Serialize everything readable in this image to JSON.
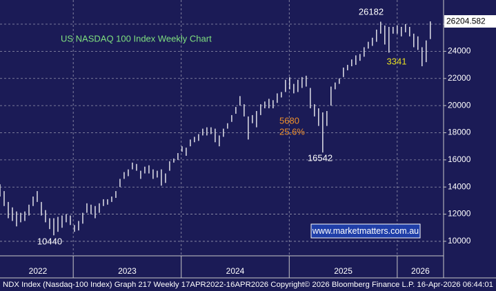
{
  "chart_data": {
    "type": "range_bar",
    "title": "US NASDAQ 100 Index Weekly Chart",
    "high": [
      14200,
      13700,
      12900,
      12500,
      12200,
      12100,
      12200,
      12700,
      13300,
      13700,
      12900,
      12300,
      11700,
      11700,
      11800,
      11900,
      12000,
      11900,
      11200,
      11500,
      12100,
      12800,
      12700,
      12600,
      12800,
      13100,
      13100,
      13300,
      13700,
      14600,
      15100,
      15300,
      15800,
      15700,
      15200,
      15500,
      15600,
      15300,
      15200,
      15300,
      15000,
      15900,
      16100,
      16500,
      17000,
      16900,
      17500,
      17700,
      17900,
      18300,
      18400,
      18400,
      18300,
      17800,
      18300,
      18700,
      19300,
      19900,
      20700,
      20100,
      19200,
      19300,
      19600,
      20100,
      20300,
      20500,
      20400,
      20900,
      21000,
      21900,
      22100,
      21600,
      21900,
      22100,
      22200,
      21300,
      20100,
      19800,
      19500,
      19600,
      21400,
      21700,
      22000,
      22800,
      23000,
      23400,
      23700,
      23800,
      24300,
      24700,
      25000,
      25600,
      26182,
      25900,
      25800,
      25800,
      25900,
      25800,
      26000,
      25800,
      25300,
      25100,
      24300,
      24800,
      26204
    ],
    "low": [
      13300,
      12600,
      11700,
      11500,
      11100,
      11400,
      11500,
      11900,
      12600,
      12900,
      11900,
      11400,
      10900,
      10440,
      10700,
      11000,
      11400,
      11200,
      10700,
      10800,
      11300,
      12100,
      12000,
      11700,
      12100,
      12600,
      12700,
      12900,
      13200,
      14000,
      14600,
      14800,
      15300,
      15200,
      14600,
      15000,
      15000,
      14600,
      14700,
      14100,
      14300,
      15200,
      15800,
      16000,
      16600,
      16300,
      17000,
      17300,
      17400,
      17800,
      17800,
      17900,
      17300,
      17000,
      17700,
      18300,
      18800,
      19400,
      20000,
      19200,
      17500,
      18700,
      18400,
      19300,
      19800,
      19800,
      19800,
      20200,
      20600,
      21000,
      21200,
      20900,
      21000,
      21300,
      21400,
      19800,
      19200,
      18500,
      16542,
      18500,
      20000,
      21200,
      21600,
      22100,
      22600,
      22900,
      23000,
      23300,
      23600,
      24200,
      24400,
      24700,
      25300,
      24500,
      23900,
      25300,
      25300,
      25100,
      25400,
      25100,
      24300,
      24100,
      22900,
      23200,
      24900
    ],
    "last_value": 26204.582,
    "annotations": [
      "26182",
      "3341",
      "5680",
      "25.6%",
      "16542",
      "10440"
    ],
    "watermark": "www.marketmatters.com.au",
    "footer": "NDX Index (Nasdaq-100 Index) Graph 217 Weekly 17APR2022-16APR2026  Copyright© 2026 Bloomberg Finance L.P. 16-Apr-2026 06:44:01",
    "ylim": [
      8930,
      27780
    ],
    "yticks": [
      {
        "value": 10000,
        "label": "10000"
      },
      {
        "value": 12000,
        "label": "12000"
      },
      {
        "value": 14000,
        "label": "14000"
      },
      {
        "value": 16000,
        "label": "16000"
      },
      {
        "value": 18000,
        "label": "18000"
      },
      {
        "value": 20000,
        "label": "20000"
      },
      {
        "value": 22000,
        "label": "22000"
      },
      {
        "value": 24000,
        "label": "24000"
      },
      {
        "value": 26000,
        "label": "26000"
      }
    ],
    "xlim": [
      0,
      107.2
    ],
    "xticks": [
      {
        "value": 17.7,
        "label": "2023"
      },
      {
        "value": 43.8,
        "label": "2024"
      },
      {
        "value": 69.9,
        "label": "2025"
      },
      {
        "value": 96.0,
        "label": "2026"
      }
    ],
    "first_year_label": "2022",
    "grid": true
  }
}
